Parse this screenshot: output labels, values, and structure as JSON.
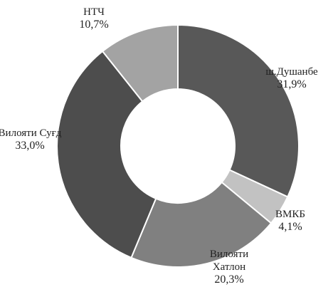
{
  "chart_data": {
    "type": "donut",
    "categories": [
      "ш.Душанбе",
      "ВМКБ",
      "Вилояти Хатлон",
      "Вилояти Суғд",
      "НТЧ"
    ],
    "values": [
      31.9,
      4.1,
      20.3,
      33.0,
      10.7
    ],
    "value_labels": [
      "31,9%",
      "4,1%",
      "20,3%",
      "33,0%",
      "10,7%"
    ],
    "colors": [
      "#585858",
      "#c2c2c2",
      "#808080",
      "#4d4d4d",
      "#a3a3a3"
    ]
  }
}
